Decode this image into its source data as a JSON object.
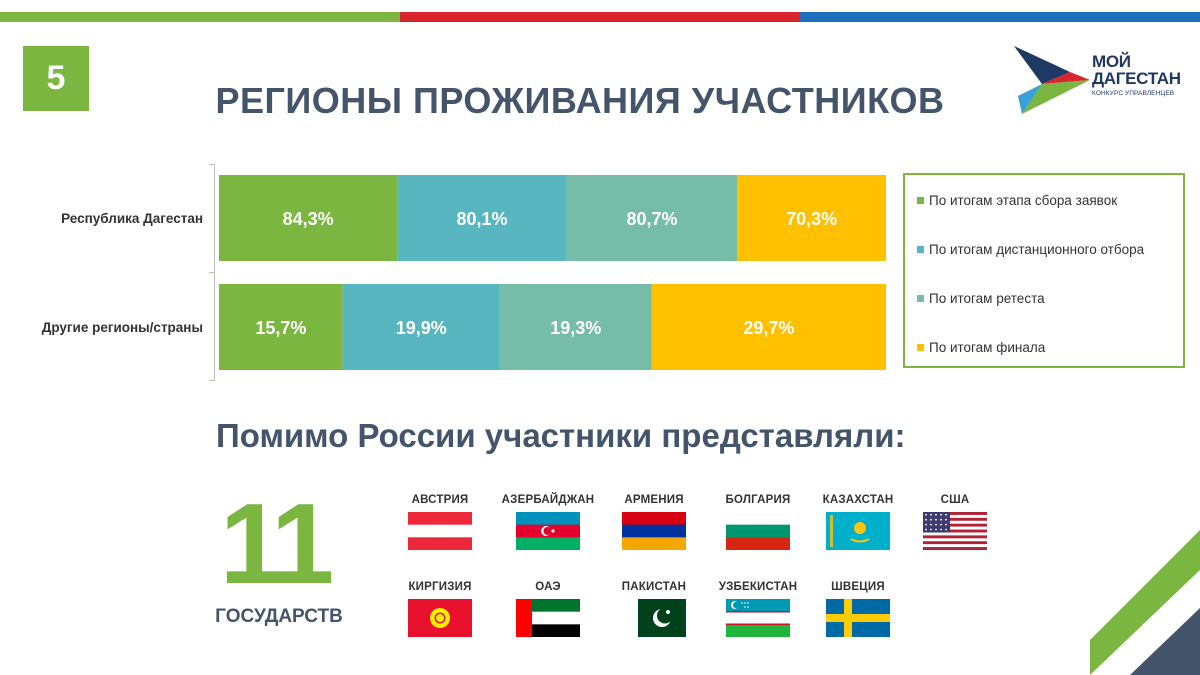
{
  "slide": {
    "number": "5",
    "title": "РЕГИОНЫ ПРОЖИВАНИЯ УЧАСТНИКОВ",
    "subtitle": "Помимо России участники представляли:",
    "count_value": "11",
    "count_label": "ГОСУДАРСТВ"
  },
  "logo": {
    "line1": "МОЙ",
    "line2": "ДАГЕСТАН",
    "tagline": "КОНКУРС УПРАВЛЕНЦЕВ"
  },
  "chart_data": {
    "type": "bar",
    "orientation": "horizontal",
    "stacked": true,
    "categories": [
      "Республика Дагестан",
      "Другие регионы/страны"
    ],
    "series": [
      {
        "name": "По итогам этапа сбора заявок",
        "color": "#7ab640",
        "values": [
          84.3,
          15.7
        ],
        "labels": [
          "84,3%",
          "15,7%"
        ]
      },
      {
        "name": "По итогам дистанционного отбора",
        "color": "#58b6c0",
        "values": [
          80.1,
          19.9
        ],
        "labels": [
          "80,1%",
          "19,9%"
        ]
      },
      {
        "name": "По итогам ретеста",
        "color": "#75bda7",
        "values": [
          80.7,
          19.3
        ],
        "labels": [
          "80,7%",
          "19,3%"
        ]
      },
      {
        "name": "По итогам финала",
        "color": "#ffc000",
        "values": [
          70.3,
          29.7
        ],
        "labels": [
          "70,3%",
          "29,7%"
        ]
      }
    ],
    "legend_position": "right",
    "grid": false
  },
  "countries": [
    {
      "name": "АВСТРИЯ",
      "flag": "austria-flag-icon"
    },
    {
      "name": "АЗЕРБАЙДЖАН",
      "flag": "azerbaijan-flag-icon"
    },
    {
      "name": "АРМЕНИЯ",
      "flag": "armenia-flag-icon"
    },
    {
      "name": "БОЛГАРИЯ",
      "flag": "bulgaria-flag-icon"
    },
    {
      "name": "КАЗАХСТАН",
      "flag": "kazakhstan-flag-icon"
    },
    {
      "name": "США",
      "flag": "usa-flag-icon"
    },
    {
      "name": "КИРГИЗИЯ",
      "flag": "kyrgyzstan-flag-icon"
    },
    {
      "name": "ОАЭ",
      "flag": "uae-flag-icon"
    },
    {
      "name": "ПАКИСТАН",
      "flag": "pakistan-flag-icon"
    },
    {
      "name": "УЗБЕКИСТАН",
      "flag": "uzbekistan-flag-icon"
    },
    {
      "name": "ШВЕЦИЯ",
      "flag": "sweden-flag-icon"
    }
  ],
  "colors": {
    "green": "#7ab640",
    "red": "#d9262e",
    "blue": "#1f6fbf",
    "dark": "#44546a"
  }
}
